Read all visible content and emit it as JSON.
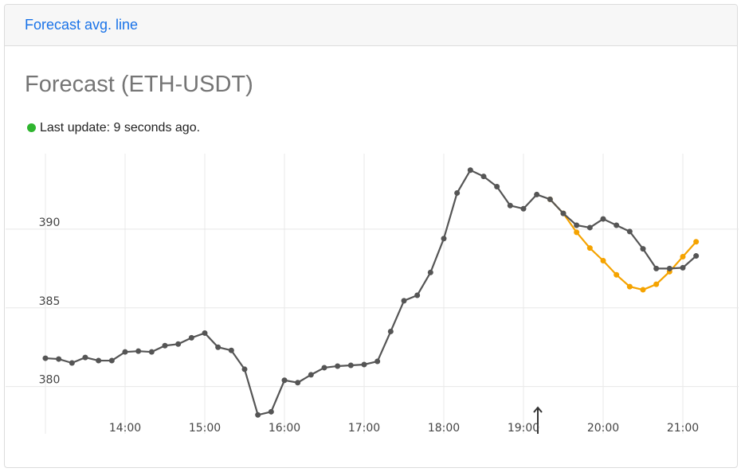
{
  "header": {
    "title": "Forecast avg. line"
  },
  "heading": "Forecast (ETH-USDT)",
  "status": {
    "text": "Last update: 9 seconds ago."
  },
  "chart_data": {
    "type": "line",
    "x": [
      780,
      790,
      800,
      810,
      820,
      830,
      840,
      850,
      860,
      870,
      880,
      890,
      900,
      910,
      920,
      930,
      940,
      950,
      960,
      970,
      980,
      990,
      1000,
      1010,
      1020,
      1030,
      1040,
      1050,
      1060,
      1070,
      1080,
      1090,
      1100,
      1110,
      1120,
      1130,
      1140,
      1150,
      1160,
      1170,
      1180,
      1190,
      1200,
      1210,
      1220,
      1230,
      1240,
      1250,
      1260,
      1270
    ],
    "series": [
      {
        "color": "#555555",
        "values": [
          381.8,
          381.75,
          381.5,
          381.85,
          381.65,
          381.65,
          382.2,
          382.25,
          382.2,
          382.6,
          382.7,
          383.1,
          383.4,
          382.5,
          382.3,
          381.1,
          378.2,
          378.4,
          380.4,
          380.25,
          380.75,
          381.2,
          381.3,
          381.35,
          381.4,
          381.6,
          383.5,
          385.45,
          385.8,
          387.25,
          389.4,
          392.3,
          393.75,
          393.35,
          392.7,
          391.5,
          391.3,
          392.2,
          391.9,
          391.0,
          390.25,
          390.1,
          390.65,
          390.25,
          389.85,
          388.75,
          387.5,
          387.5,
          387.55,
          388.3
        ]
      },
      {
        "color": "#f5a300",
        "values": [
          null,
          null,
          null,
          null,
          null,
          null,
          null,
          null,
          null,
          null,
          null,
          null,
          null,
          null,
          null,
          null,
          null,
          null,
          null,
          null,
          null,
          null,
          null,
          null,
          null,
          null,
          null,
          null,
          null,
          null,
          null,
          null,
          null,
          null,
          null,
          null,
          null,
          null,
          391.9,
          391.0,
          389.8,
          388.8,
          388.0,
          387.1,
          386.35,
          386.15,
          386.5,
          387.3,
          388.25,
          389.2
        ]
      }
    ],
    "xlim": [
      750,
      1302
    ],
    "xticks": [
      {
        "value": 780,
        "label": null
      },
      {
        "value": 840,
        "label": "14:00"
      },
      {
        "value": 900,
        "label": "15:00"
      },
      {
        "value": 960,
        "label": "16:00"
      },
      {
        "value": 1020,
        "label": "17:00"
      },
      {
        "value": 1080,
        "label": "18:00"
      },
      {
        "value": 1140,
        "label": "19:00"
      },
      {
        "value": 1200,
        "label": "20:00"
      },
      {
        "value": 1260,
        "label": "21:00"
      }
    ],
    "ylim": [
      377,
      394.8
    ],
    "yticks": [
      380,
      385,
      390
    ],
    "grid": true
  }
}
